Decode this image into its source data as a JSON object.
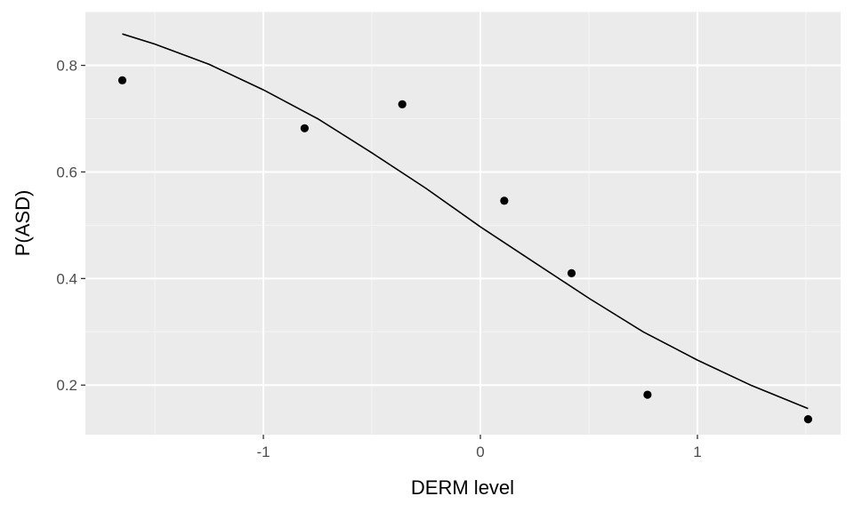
{
  "chart_data": {
    "type": "scatter",
    "xlabel": "DERM level",
    "ylabel": "P(ASD)",
    "xlim": [
      -1.82,
      1.66
    ],
    "ylim": [
      0.107,
      0.901
    ],
    "x_ticks": [
      -1,
      0,
      1
    ],
    "x_tick_labels": [
      "-1",
      "0",
      "1"
    ],
    "y_ticks": [
      0.2,
      0.4,
      0.6,
      0.8
    ],
    "y_tick_labels": [
      "0.2",
      "0.4",
      "0.6",
      "0.8"
    ],
    "grid": true,
    "points": [
      {
        "x": -1.65,
        "y": 0.772
      },
      {
        "x": -0.81,
        "y": 0.682
      },
      {
        "x": -0.36,
        "y": 0.727
      },
      {
        "x": 0.11,
        "y": 0.546
      },
      {
        "x": 0.42,
        "y": 0.41
      },
      {
        "x": 0.77,
        "y": 0.182
      },
      {
        "x": 1.51,
        "y": 0.136
      }
    ],
    "fit_line": {
      "x": [
        -1.65,
        -1.5,
        -1.25,
        -1.0,
        -0.75,
        -0.5,
        -0.25,
        0.0,
        0.25,
        0.5,
        0.75,
        1.0,
        1.25,
        1.51
      ],
      "y": [
        0.859,
        0.84,
        0.802,
        0.754,
        0.7,
        0.636,
        0.569,
        0.497,
        0.43,
        0.363,
        0.3,
        0.247,
        0.199,
        0.156
      ]
    },
    "colors": {
      "panel": "#ebebeb",
      "grid_major": "#ffffff",
      "grid_minor": "#f5f5f5",
      "point": "#000000",
      "line": "#000000"
    }
  }
}
